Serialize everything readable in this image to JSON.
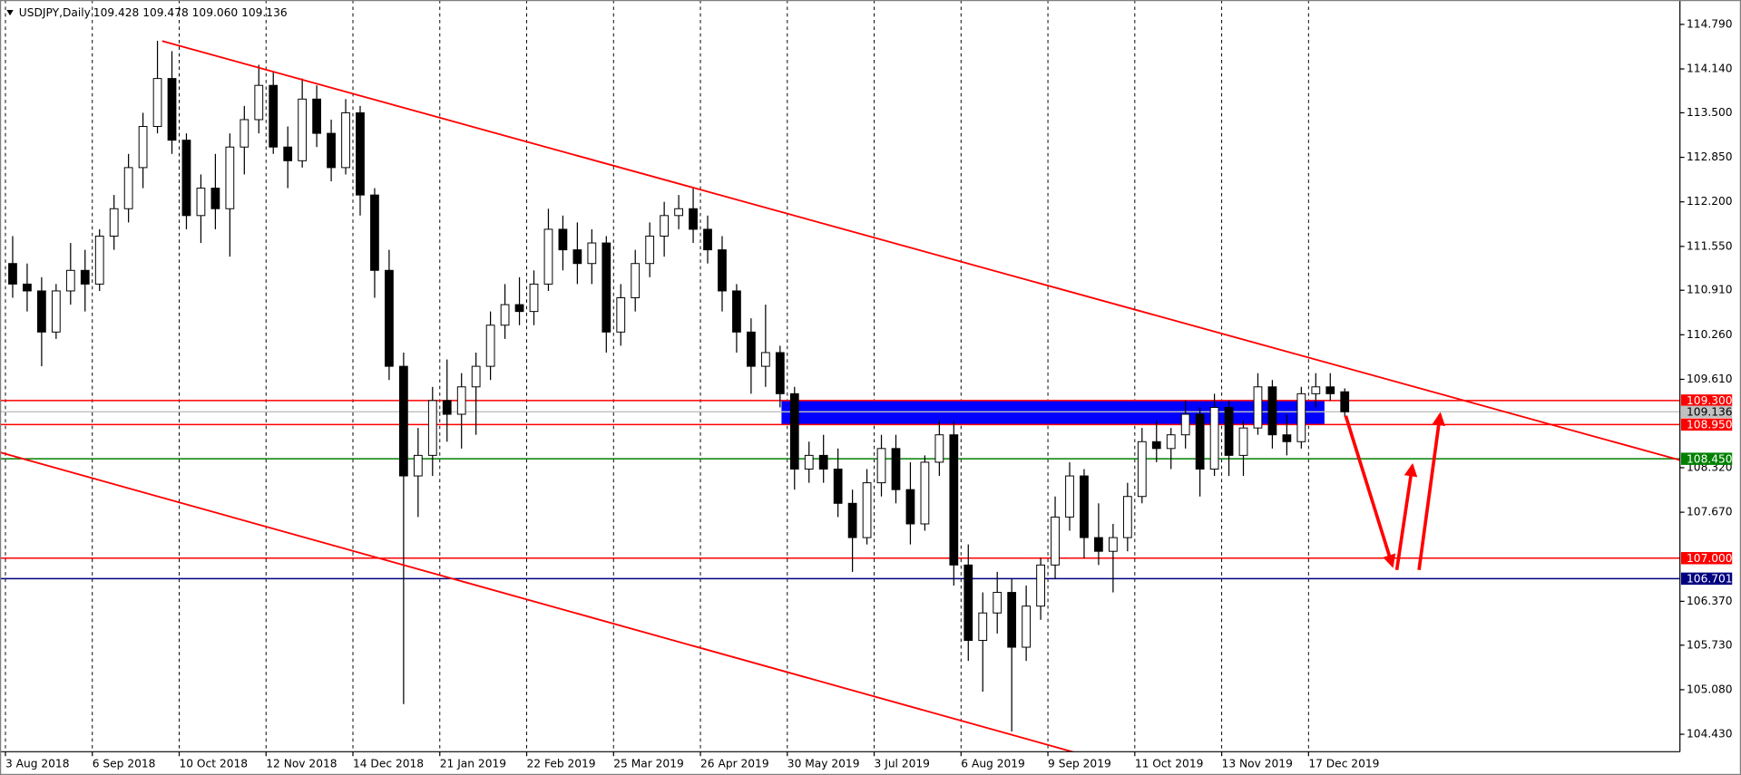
{
  "chart_data": {
    "type": "candlestick",
    "title": "USDJPY,Daily",
    "ohlc_header": "109.428 109.478 109.060 109.136",
    "up_color": "#ffffff",
    "down_color": "#000000",
    "xlim": [
      -1.5,
      462.6
    ],
    "ylim": [
      104.175,
      115.146
    ],
    "xticks": [
      {
        "value": 0,
        "label": "3 Aug 2018"
      },
      {
        "value": 24,
        "label": "6 Sep 2018"
      },
      {
        "value": 48,
        "label": "10 Oct 2018"
      },
      {
        "value": 72,
        "label": "12 Nov 2018"
      },
      {
        "value": 96,
        "label": "14 Dec 2018"
      },
      {
        "value": 120,
        "label": "21 Jan 2019"
      },
      {
        "value": 144,
        "label": "22 Feb 2019"
      },
      {
        "value": 168,
        "label": "25 Mar 2019"
      },
      {
        "value": 192,
        "label": "26 Apr 2019"
      },
      {
        "value": 216,
        "label": "30 May 2019"
      },
      {
        "value": 240,
        "label": "3 Jul 2019"
      },
      {
        "value": 264,
        "label": "6 Aug 2019"
      },
      {
        "value": 288,
        "label": "9 Sep 2019"
      },
      {
        "value": 312,
        "label": "11 Oct 2019"
      },
      {
        "value": 336,
        "label": "13 Nov 2019"
      },
      {
        "value": 360,
        "label": "17 Dec 2019"
      }
    ],
    "yticks": [
      {
        "value": 114.79,
        "label": "114.790"
      },
      {
        "value": 114.14,
        "label": "114.140"
      },
      {
        "value": 113.5,
        "label": "113.500"
      },
      {
        "value": 112.85,
        "label": "112.850"
      },
      {
        "value": 112.2,
        "label": "112.200"
      },
      {
        "value": 111.55,
        "label": "111.550"
      },
      {
        "value": 110.91,
        "label": "110.910"
      },
      {
        "value": 110.26,
        "label": "110.260"
      },
      {
        "value": 109.61,
        "label": "109.610"
      },
      {
        "value": 108.32,
        "label": "108.320"
      },
      {
        "value": 107.67,
        "label": "107.670"
      },
      {
        "value": 106.37,
        "label": "106.370"
      },
      {
        "value": 105.73,
        "label": "105.730"
      },
      {
        "value": 105.08,
        "label": "105.080"
      },
      {
        "value": 104.43,
        "label": "104.430"
      }
    ],
    "grid": true,
    "levels": [
      {
        "value": 109.3,
        "label": "109.300",
        "color": "#ff0000",
        "text_color": "#ffffff"
      },
      {
        "value": 109.136,
        "label": "109.136",
        "color": "#c0c0c0",
        "text_color": "#000000"
      },
      {
        "value": 108.95,
        "label": "108.950",
        "color": "#ff0000",
        "text_color": "#ffffff"
      },
      {
        "value": 108.45,
        "label": "108.450",
        "color": "#008000",
        "text_color": "#ffffff"
      },
      {
        "value": 107.0,
        "label": "107.000",
        "color": "#ff0000",
        "text_color": "#ffffff"
      },
      {
        "value": 106.701,
        "label": "106.701",
        "color": "#000080",
        "text_color": "#ffffff"
      }
    ],
    "zone": {
      "from": 108.95,
      "to": 109.3,
      "x": [
        214.4,
        364.4
      ],
      "color": "#0000ff"
    },
    "x": [
      2,
      6,
      10,
      14,
      18,
      22,
      26,
      30,
      34,
      38,
      42,
      46,
      50,
      54,
      58,
      62,
      66,
      70,
      74,
      78,
      82,
      86,
      90,
      94,
      98,
      102,
      106,
      110,
      114,
      118,
      122,
      126,
      130,
      134,
      138,
      142,
      146,
      150,
      154,
      158,
      162,
      166,
      170,
      174,
      178,
      182,
      186,
      190,
      194,
      198,
      202,
      206,
      210,
      214,
      218,
      222,
      226,
      230,
      234,
      238,
      242,
      246,
      250,
      254,
      258,
      262,
      266,
      270,
      274,
      278,
      282,
      286,
      290,
      294,
      298,
      302,
      306,
      310,
      314,
      318,
      322,
      326,
      330,
      334,
      338,
      342,
      346,
      350,
      354,
      358,
      362,
      366,
      370
    ],
    "ohlc": [
      [
        111.3,
        111.7,
        110.8,
        111.0
      ],
      [
        111.0,
        111.3,
        110.6,
        110.9
      ],
      [
        110.9,
        111.1,
        109.8,
        110.3
      ],
      [
        110.3,
        111.0,
        110.2,
        110.9
      ],
      [
        110.9,
        111.6,
        110.7,
        111.2
      ],
      [
        111.2,
        111.5,
        110.6,
        111.0
      ],
      [
        111.0,
        111.8,
        110.9,
        111.7
      ],
      [
        111.7,
        112.3,
        111.5,
        112.1
      ],
      [
        112.1,
        112.9,
        111.9,
        112.7
      ],
      [
        112.7,
        113.5,
        112.4,
        113.3
      ],
      [
        113.3,
        114.55,
        113.2,
        114.0
      ],
      [
        114.0,
        114.4,
        112.9,
        113.1
      ],
      [
        113.1,
        113.2,
        111.8,
        112.0
      ],
      [
        112.0,
        112.6,
        111.6,
        112.4
      ],
      [
        112.4,
        112.9,
        111.8,
        112.1
      ],
      [
        112.1,
        113.2,
        111.4,
        113.0
      ],
      [
        113.0,
        113.6,
        112.6,
        113.4
      ],
      [
        113.4,
        114.2,
        113.2,
        113.9
      ],
      [
        113.9,
        114.1,
        112.9,
        113.0
      ],
      [
        113.0,
        113.3,
        112.4,
        112.8
      ],
      [
        112.8,
        114.0,
        112.7,
        113.7
      ],
      [
        113.7,
        113.9,
        113.0,
        113.2
      ],
      [
        113.2,
        113.4,
        112.5,
        112.7
      ],
      [
        112.7,
        113.7,
        112.6,
        113.5
      ],
      [
        113.5,
        113.6,
        112.0,
        112.3
      ],
      [
        112.3,
        112.4,
        110.8,
        111.2
      ],
      [
        111.2,
        111.5,
        109.6,
        109.8
      ],
      [
        109.8,
        110.0,
        104.87,
        108.2
      ],
      [
        108.2,
        108.9,
        107.6,
        108.5
      ],
      [
        108.5,
        109.5,
        108.2,
        109.3
      ],
      [
        109.3,
        109.9,
        108.7,
        109.1
      ],
      [
        109.1,
        109.7,
        108.6,
        109.5
      ],
      [
        109.5,
        110.0,
        108.8,
        109.8
      ],
      [
        109.8,
        110.6,
        109.6,
        110.4
      ],
      [
        110.4,
        111.0,
        110.2,
        110.7
      ],
      [
        110.7,
        111.1,
        110.4,
        110.6
      ],
      [
        110.6,
        111.2,
        110.4,
        111.0
      ],
      [
        111.0,
        112.1,
        110.9,
        111.8
      ],
      [
        111.8,
        112.0,
        111.2,
        111.5
      ],
      [
        111.5,
        111.9,
        111.0,
        111.3
      ],
      [
        111.3,
        111.8,
        111.0,
        111.6
      ],
      [
        111.6,
        111.7,
        110.0,
        110.3
      ],
      [
        110.3,
        111.0,
        110.1,
        110.8
      ],
      [
        110.8,
        111.5,
        110.6,
        111.3
      ],
      [
        111.3,
        111.9,
        111.1,
        111.7
      ],
      [
        111.7,
        112.2,
        111.4,
        112.0
      ],
      [
        112.0,
        112.3,
        111.8,
        112.1
      ],
      [
        112.1,
        112.4,
        111.6,
        111.8
      ],
      [
        111.8,
        112.0,
        111.3,
        111.5
      ],
      [
        111.5,
        111.7,
        110.6,
        110.9
      ],
      [
        110.9,
        111.0,
        110.0,
        110.3
      ],
      [
        110.3,
        110.5,
        109.4,
        109.8
      ],
      [
        109.8,
        110.7,
        109.5,
        110.0
      ],
      [
        110.0,
        110.1,
        109.2,
        109.4
      ],
      [
        109.4,
        109.5,
        108.0,
        108.3
      ],
      [
        108.3,
        108.7,
        108.1,
        108.5
      ],
      [
        108.5,
        108.8,
        108.1,
        108.3
      ],
      [
        108.3,
        108.6,
        107.6,
        107.8
      ],
      [
        107.8,
        108.0,
        106.8,
        107.3
      ],
      [
        107.3,
        108.3,
        107.2,
        108.1
      ],
      [
        108.1,
        108.8,
        107.9,
        108.6
      ],
      [
        108.6,
        108.8,
        107.8,
        108.0
      ],
      [
        108.0,
        108.4,
        107.2,
        107.5
      ],
      [
        107.5,
        108.5,
        107.4,
        108.4
      ],
      [
        108.4,
        109.0,
        108.2,
        108.8
      ],
      [
        108.8,
        109.0,
        106.6,
        106.9
      ],
      [
        106.9,
        107.2,
        105.5,
        105.8
      ],
      [
        105.8,
        106.5,
        105.05,
        106.2
      ],
      [
        106.2,
        106.8,
        105.9,
        106.5
      ],
      [
        106.5,
        106.7,
        104.47,
        105.7
      ],
      [
        105.7,
        106.6,
        105.5,
        106.3
      ],
      [
        106.3,
        107.0,
        106.1,
        106.9
      ],
      [
        106.9,
        107.9,
        106.7,
        107.6
      ],
      [
        107.6,
        108.4,
        107.4,
        108.2
      ],
      [
        108.2,
        108.3,
        107.0,
        107.3
      ],
      [
        107.3,
        107.8,
        106.9,
        107.1
      ],
      [
        107.1,
        107.5,
        106.5,
        107.3
      ],
      [
        107.3,
        108.1,
        107.1,
        107.9
      ],
      [
        107.9,
        108.9,
        107.8,
        108.7
      ],
      [
        108.7,
        109.0,
        108.4,
        108.6
      ],
      [
        108.6,
        108.9,
        108.3,
        108.8
      ],
      [
        108.8,
        109.3,
        108.6,
        109.1
      ],
      [
        109.1,
        109.2,
        107.9,
        108.3
      ],
      [
        108.3,
        109.4,
        108.2,
        109.2
      ],
      [
        109.2,
        109.3,
        108.2,
        108.5
      ],
      [
        108.5,
        109.0,
        108.2,
        108.9
      ],
      [
        108.9,
        109.7,
        108.8,
        109.5
      ],
      [
        109.5,
        109.6,
        108.6,
        108.8
      ],
      [
        108.8,
        109.1,
        108.5,
        108.7
      ],
      [
        108.7,
        109.5,
        108.6,
        109.4
      ],
      [
        109.4,
        109.7,
        109.2,
        109.5
      ],
      [
        109.5,
        109.7,
        109.3,
        109.4
      ],
      [
        109.428,
        109.478,
        109.06,
        109.136
      ]
    ]
  }
}
